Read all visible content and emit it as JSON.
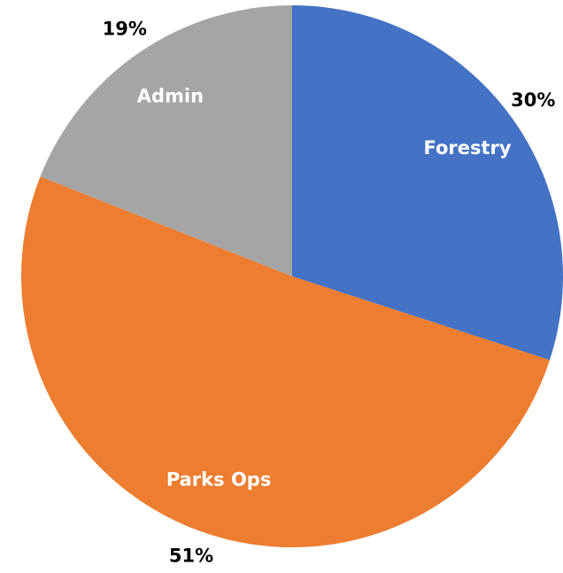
{
  "chart_data": {
    "type": "pie",
    "categories": [
      "Forestry",
      "Parks Ops",
      "Admin"
    ],
    "values": [
      30,
      51,
      19
    ],
    "value_labels": [
      "30%",
      "51%",
      "19%"
    ],
    "colors": [
      "#4472c4",
      "#ed7d31",
      "#a5a5a5"
    ]
  }
}
